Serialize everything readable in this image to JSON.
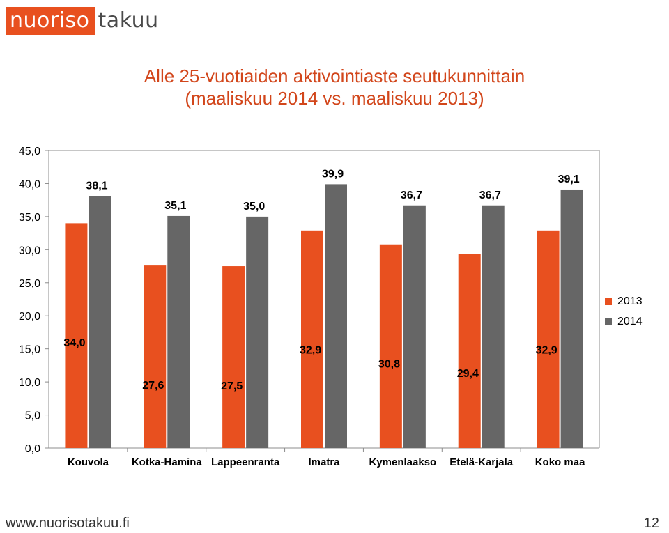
{
  "logo": {
    "part1": "nuoriso",
    "part2": "takuu"
  },
  "title_line1": "Alle 25-vuotiaiden aktivointiaste seutukunnittain",
  "title_line2": "(maaliskuu 2014 vs. maaliskuu 2013)",
  "footer": {
    "url": "www.nuorisotakuu.fi",
    "page_number": "12"
  },
  "colors": {
    "accent": "#d2461b",
    "series_2013": "#e8501f",
    "series_2014": "#666666"
  },
  "chart_data": {
    "type": "bar",
    "title": "Alle 25-vuotiaiden aktivointiaste seutukunnittain (maaliskuu 2014 vs. maaliskuu 2013)",
    "categories": [
      "Kouvola",
      "Kotka-Hamina",
      "Lappeenranta",
      "Imatra",
      "Kymenlaakso",
      "Etelä-Karjala",
      "Koko maa"
    ],
    "series": [
      {
        "name": "2013",
        "values": [
          34.0,
          27.6,
          27.5,
          32.9,
          30.8,
          29.4,
          32.9
        ],
        "labels": [
          "34,0",
          "27,6",
          "27,5",
          "32,9",
          "30,8",
          "29,4",
          "32,9"
        ]
      },
      {
        "name": "2014",
        "values": [
          38.1,
          35.1,
          35.0,
          39.9,
          36.7,
          36.7,
          39.1
        ],
        "labels": [
          "38,1",
          "35,1",
          "35,0",
          "39,9",
          "36,7",
          "36,7",
          "39,1"
        ]
      }
    ],
    "ylim": [
      0,
      45
    ],
    "yticks": [
      "0,0",
      "5,0",
      "10,0",
      "15,0",
      "20,0",
      "25,0",
      "30,0",
      "35,0",
      "40,0",
      "45,0"
    ],
    "grid": false,
    "legend": "right"
  }
}
